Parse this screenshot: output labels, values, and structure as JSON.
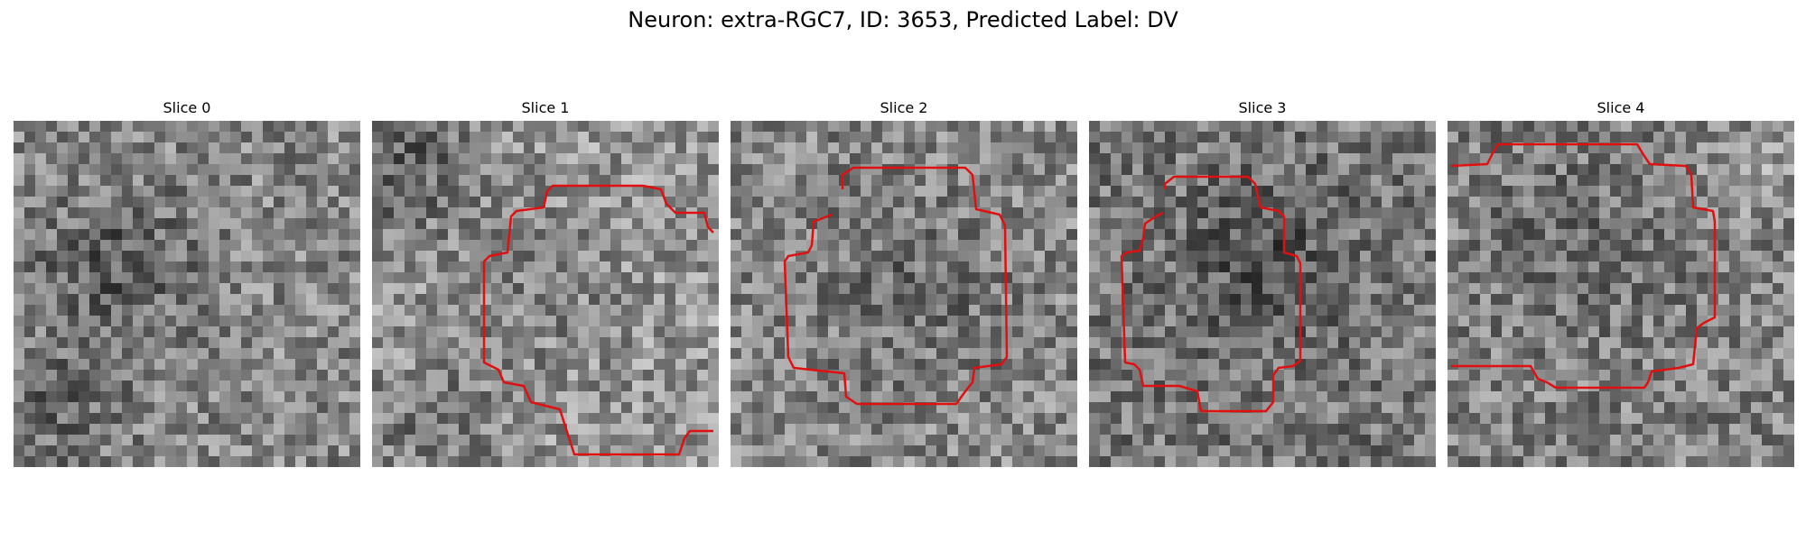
{
  "figure": {
    "title": "Neuron: extra-RGC7, ID: 3653, Predicted Label: DV"
  },
  "panels": [
    {
      "title": "Slice 0",
      "has_contour": false,
      "base_level": 135
    },
    {
      "title": "Slice 1",
      "has_contour": true,
      "base_level": 150
    },
    {
      "title": "Slice 2",
      "has_contour": true,
      "base_level": 135
    },
    {
      "title": "Slice 3",
      "has_contour": true,
      "base_level": 120
    },
    {
      "title": "Slice 4",
      "has_contour": true,
      "base_level": 130
    }
  ],
  "colors": {
    "contour": "#e01010",
    "background": "#ffffff"
  },
  "image": {
    "colormap": "gray",
    "grid": "32x32 pixel patch"
  }
}
